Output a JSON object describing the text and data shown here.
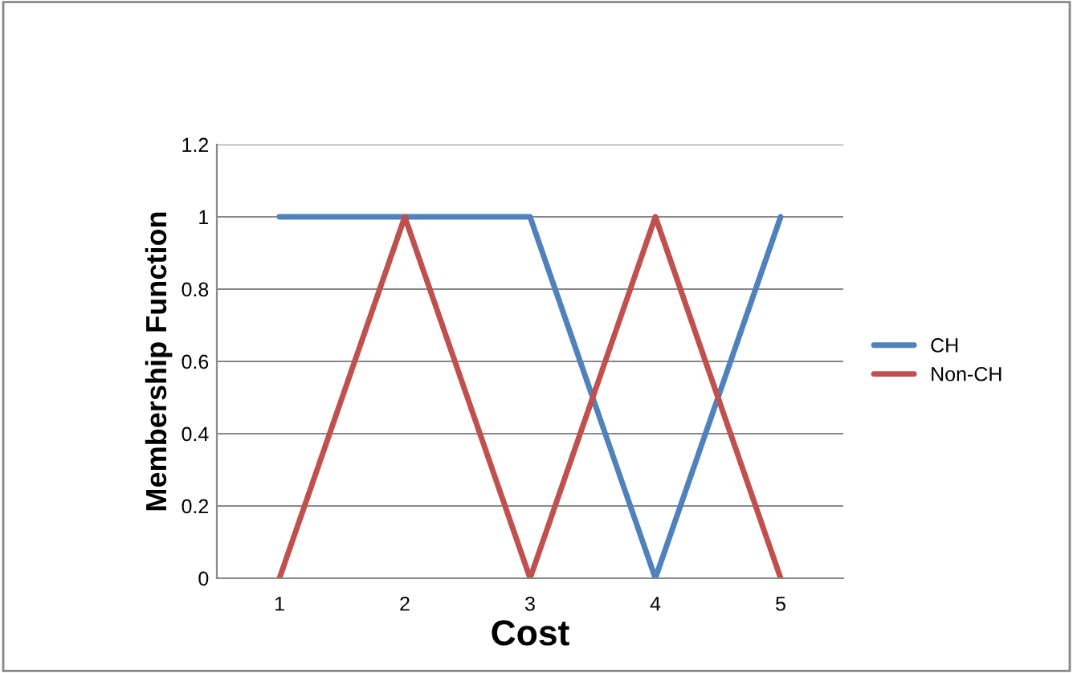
{
  "chart_data": {
    "type": "line",
    "xlabel": "Cost",
    "ylabel": "Membership Function",
    "categories": [
      "1",
      "2",
      "3",
      "4",
      "5"
    ],
    "series": [
      {
        "name": "CH",
        "color": "#4f81bd",
        "values": [
          1,
          1,
          1,
          0,
          1
        ]
      },
      {
        "name": "Non-CH",
        "color": "#c0504d",
        "values": [
          0,
          1,
          0,
          1,
          0
        ]
      }
    ],
    "ylim": [
      0,
      1.2
    ],
    "yticks": [
      0,
      0.2,
      0.4,
      0.6,
      0.8,
      1,
      1.2
    ],
    "grid": "y",
    "legend": "right",
    "marker": "none",
    "line_style": "solid"
  }
}
